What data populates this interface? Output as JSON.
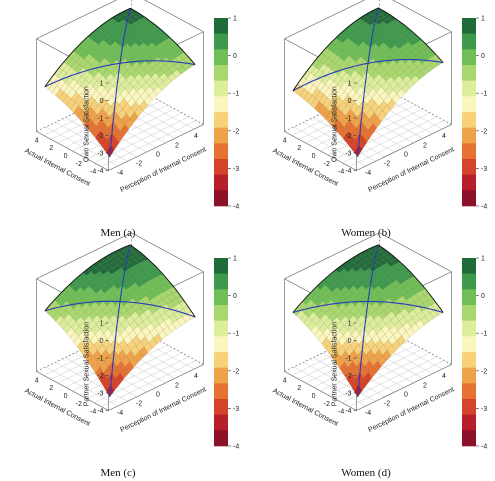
{
  "chart_data": [
    {
      "type": "surface3d",
      "panel_label": "Men (a)",
      "zlabel": "Own Sexual Satisfaction",
      "xlabel": "Perception of Internal Consent",
      "ylabel": "Actual Internal Consent",
      "x_ticks": [
        -4,
        -2,
        0,
        2,
        4
      ],
      "y_ticks": [
        -4,
        -2,
        0,
        2,
        4
      ],
      "z_ticks": [
        -4,
        -3,
        -2,
        -1,
        0,
        1
      ],
      "zlim": [
        -4,
        1
      ],
      "surface": {
        "b0": -0.3,
        "bx": 0.28,
        "by": 0.18,
        "bxx": -0.03,
        "bxy": -0.01,
        "byy": -0.015
      },
      "colorbar_ticks": [
        1,
        0,
        -1,
        -2,
        -3,
        -4
      ],
      "colorbar_colors": [
        "#1f6b3a",
        "#3d9a4c",
        "#6fbf56",
        "#a9d86e",
        "#dcee9c",
        "#fbf6bd",
        "#f7d27a",
        "#f0a24a",
        "#e57232",
        "#d5432a",
        "#b5202b",
        "#8e0f28"
      ]
    },
    {
      "type": "surface3d",
      "panel_label": "Women (b)",
      "zlabel": "Own Sexual Satisfaction",
      "xlabel": "Perception of Internal Consent",
      "ylabel": "Actual Internal Consent",
      "x_ticks": [
        -4,
        -2,
        0,
        2,
        4
      ],
      "y_ticks": [
        -4,
        -2,
        0,
        2,
        4
      ],
      "z_ticks": [
        -4,
        -3,
        -2,
        -1,
        0,
        1
      ],
      "zlim": [
        -4,
        1
      ],
      "surface": {
        "b0": -0.3,
        "bx": 0.3,
        "by": 0.16,
        "bxx": -0.032,
        "bxy": -0.008,
        "byy": -0.014
      },
      "colorbar_ticks": [
        1,
        0,
        -1,
        -2,
        -3,
        -4
      ],
      "colorbar_colors": [
        "#1f6b3a",
        "#3d9a4c",
        "#6fbf56",
        "#a9d86e",
        "#dcee9c",
        "#fbf6bd",
        "#f7d27a",
        "#f0a24a",
        "#e57232",
        "#d5432a",
        "#b5202b",
        "#8e0f28"
      ]
    },
    {
      "type": "surface3d",
      "panel_label": "Men (c)",
      "zlabel": "Partner Sexual Satisfaction",
      "xlabel": "Perception of Internal Consent",
      "ylabel": "Actual Internal Consent",
      "x_ticks": [
        -4,
        -2,
        0,
        2,
        4
      ],
      "y_ticks": [
        -4,
        -2,
        0,
        2,
        4
      ],
      "z_ticks": [
        -4,
        -3,
        -2,
        -1,
        0,
        1
      ],
      "zlim": [
        -4,
        1
      ],
      "surface": {
        "b0": -0.2,
        "bx": 0.2,
        "by": 0.28,
        "bxx": -0.025,
        "bxy": -0.01,
        "byy": -0.02
      },
      "colorbar_ticks": [
        1,
        0,
        -1,
        -2,
        -3,
        -4
      ],
      "colorbar_colors": [
        "#1f6b3a",
        "#3d9a4c",
        "#6fbf56",
        "#a9d86e",
        "#dcee9c",
        "#fbf6bd",
        "#f7d27a",
        "#f0a24a",
        "#e57232",
        "#d5432a",
        "#b5202b",
        "#8e0f28"
      ]
    },
    {
      "type": "surface3d",
      "panel_label": "Women (d)",
      "zlabel": "Partner Sexual Satisfaction",
      "xlabel": "Perception of Internal Consent",
      "ylabel": "Actual Internal Consent",
      "x_ticks": [
        -4,
        -2,
        0,
        2,
        4
      ],
      "y_ticks": [
        -4,
        -2,
        0,
        2,
        4
      ],
      "z_ticks": [
        -4,
        -3,
        -2,
        -1,
        0,
        1
      ],
      "zlim": [
        -4,
        1
      ],
      "surface": {
        "b0": -0.2,
        "bx": 0.22,
        "by": 0.26,
        "bxx": -0.025,
        "bxy": -0.012,
        "byy": -0.018
      },
      "colorbar_ticks": [
        1,
        0,
        -1,
        -2,
        -3,
        -4
      ],
      "colorbar_colors": [
        "#1f6b3a",
        "#3d9a4c",
        "#6fbf56",
        "#a9d86e",
        "#dcee9c",
        "#fbf6bd",
        "#f7d27a",
        "#f0a24a",
        "#e57232",
        "#d5432a",
        "#b5202b",
        "#8e0f28"
      ]
    }
  ]
}
